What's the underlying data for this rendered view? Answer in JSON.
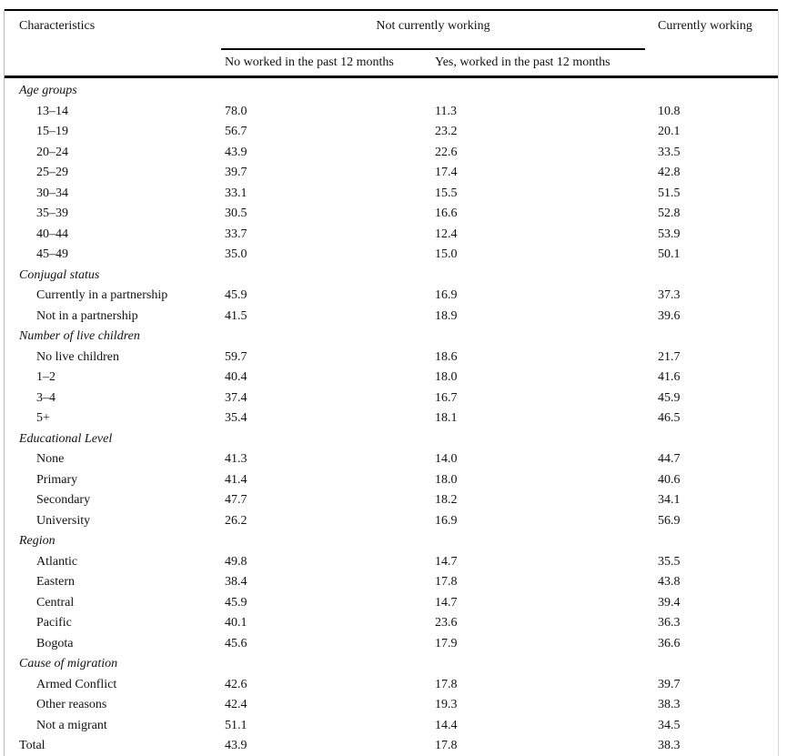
{
  "table": {
    "header": {
      "col_characteristics": "Characteristics",
      "spanner": "Not currently working",
      "sub_col_1": "No worked in the past 12 months",
      "sub_col_2": "Yes, worked in the past 12 months",
      "col_currently_working": "Currently working"
    },
    "sections": [
      {
        "label": "Age groups",
        "rows": [
          {
            "label": "13–14",
            "values": [
              "78.0",
              "11.3",
              "10.8"
            ]
          },
          {
            "label": "15–19",
            "values": [
              "56.7",
              "23.2",
              "20.1"
            ]
          },
          {
            "label": "20–24",
            "values": [
              "43.9",
              "22.6",
              "33.5"
            ]
          },
          {
            "label": "25–29",
            "values": [
              "39.7",
              "17.4",
              "42.8"
            ]
          },
          {
            "label": "30–34",
            "values": [
              "33.1",
              "15.5",
              "51.5"
            ]
          },
          {
            "label": "35–39",
            "values": [
              "30.5",
              "16.6",
              "52.8"
            ]
          },
          {
            "label": "40–44",
            "values": [
              "33.7",
              "12.4",
              "53.9"
            ]
          },
          {
            "label": "45–49",
            "values": [
              "35.0",
              "15.0",
              "50.1"
            ]
          }
        ]
      },
      {
        "label": "Conjugal status",
        "rows": [
          {
            "label": "Currently in a partnership",
            "values": [
              "45.9",
              "16.9",
              "37.3"
            ]
          },
          {
            "label": "Not in a partnership",
            "values": [
              "41.5",
              "18.9",
              "39.6"
            ]
          }
        ]
      },
      {
        "label": "Number of live children",
        "rows": [
          {
            "label": "No live children",
            "values": [
              "59.7",
              "18.6",
              "21.7"
            ]
          },
          {
            "label": "1–2",
            "values": [
              "40.4",
              "18.0",
              "41.6"
            ]
          },
          {
            "label": "3–4",
            "values": [
              "37.4",
              "16.7",
              "45.9"
            ]
          },
          {
            "label": "5+",
            "values": [
              "35.4",
              "18.1",
              "46.5"
            ]
          }
        ]
      },
      {
        "label": "Educational Level",
        "rows": [
          {
            "label": "None",
            "values": [
              "41.3",
              "14.0",
              "44.7"
            ]
          },
          {
            "label": "Primary",
            "values": [
              "41.4",
              "18.0",
              "40.6"
            ]
          },
          {
            "label": "Secondary",
            "values": [
              "47.7",
              "18.2",
              "34.1"
            ]
          },
          {
            "label": "University",
            "values": [
              "26.2",
              "16.9",
              "56.9"
            ]
          }
        ]
      },
      {
        "label": "Region",
        "rows": [
          {
            "label": "Atlantic",
            "values": [
              "49.8",
              "14.7",
              "35.5"
            ]
          },
          {
            "label": "Eastern",
            "values": [
              "38.4",
              "17.8",
              "43.8"
            ]
          },
          {
            "label": "Central",
            "values": [
              "45.9",
              "14.7",
              "39.4"
            ]
          },
          {
            "label": "Pacific",
            "values": [
              "40.1",
              "23.6",
              "36.3"
            ]
          },
          {
            "label": "Bogota",
            "values": [
              "45.6",
              "17.9",
              "36.6"
            ]
          }
        ]
      },
      {
        "label": "Cause of migration",
        "rows": [
          {
            "label": "Armed Conflict",
            "values": [
              "42.6",
              "17.8",
              "39.7"
            ]
          },
          {
            "label": "Other reasons",
            "values": [
              "42.4",
              "19.3",
              "38.3"
            ]
          },
          {
            "label": "Not a migrant",
            "values": [
              "51.1",
              "14.4",
              "34.5"
            ]
          }
        ]
      }
    ],
    "total_row": {
      "label": "Total",
      "values": [
        "43.9",
        "17.8",
        "38.3"
      ]
    },
    "colors": {
      "text": "#111111",
      "rule": "#000000",
      "background": "#ffffff"
    }
  }
}
